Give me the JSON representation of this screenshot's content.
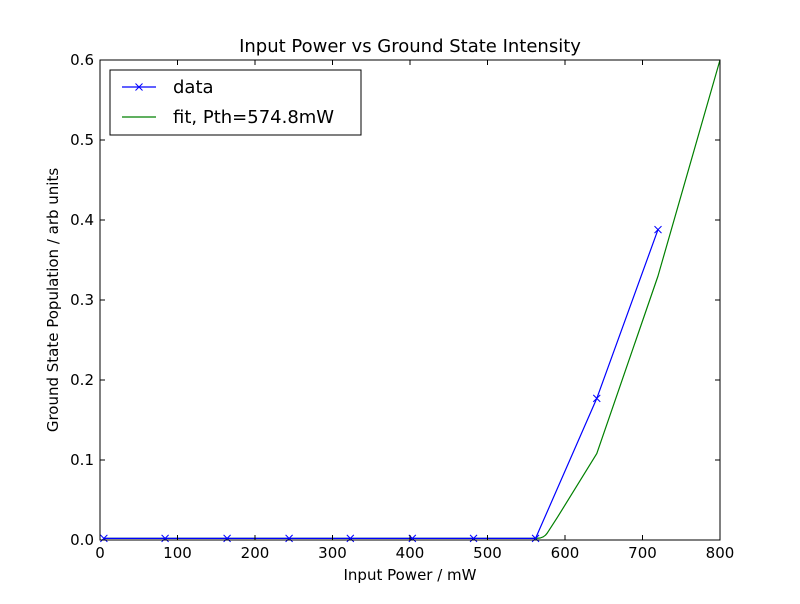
{
  "chart_data": {
    "type": "line",
    "title": "Input Power vs Ground State Intensity",
    "xlabel": "Input Power / mW",
    "ylabel": "Ground State Population / arb units",
    "xlim": [
      0,
      800
    ],
    "ylim": [
      0,
      0.6
    ],
    "x_ticks": [
      0,
      100,
      200,
      300,
      400,
      500,
      600,
      700,
      800
    ],
    "x_tick_labels": [
      "0",
      "100",
      "200",
      "300",
      "400",
      "500",
      "600",
      "700",
      "800"
    ],
    "y_ticks": [
      0.0,
      0.1,
      0.2,
      0.3,
      0.4,
      0.5,
      0.6
    ],
    "y_tick_labels": [
      "0.0",
      "0.1",
      "0.2",
      "0.3",
      "0.4",
      "0.5",
      "0.6"
    ],
    "grid": false,
    "legend_position": "top-left",
    "series": [
      {
        "name": "data",
        "color": "#0000ff",
        "marker": "x",
        "x": [
          5,
          84,
          164,
          244,
          323,
          403,
          482,
          562,
          641,
          720
        ],
        "y": [
          0.002,
          0.002,
          0.002,
          0.002,
          0.002,
          0.002,
          0.002,
          0.002,
          0.177,
          0.388
        ]
      },
      {
        "name": "fit, Pth=574.8mW",
        "color": "#008000",
        "marker": "none",
        "x": [
          5,
          562,
          568,
          572,
          574.8,
          577,
          580,
          590,
          641,
          720,
          800
        ],
        "y": [
          0.002,
          0.002,
          0.0025,
          0.004,
          0.006,
          0.0085,
          0.013,
          0.028,
          0.108,
          0.33,
          0.6
        ]
      }
    ]
  }
}
